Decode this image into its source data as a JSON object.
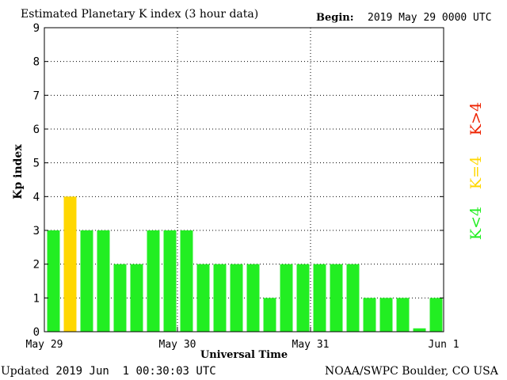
{
  "header": {
    "title": "Estimated Planetary K index (3 hour data)",
    "begin_label": "Begin:",
    "begin_value": "2019 May 29 0000 UTC"
  },
  "footer": {
    "updated_label": "Updated",
    "updated_value": "2019 Jun  1 00:30:03 UTC",
    "credit": "NOAA/SWPC Boulder, CO USA"
  },
  "legend": [
    {
      "label": "K<4",
      "color": "#22ee22"
    },
    {
      "label": "K=4",
      "color": "#ffd700"
    },
    {
      "label": "K>4",
      "color": "#ee2200"
    }
  ],
  "chart_data": {
    "type": "bar",
    "ylabel": "Kp index",
    "xlabel": "Universal Time",
    "ylim": [
      0,
      9
    ],
    "yticks": [
      "0",
      "1",
      "2",
      "3",
      "4",
      "5",
      "6",
      "7",
      "8",
      "9"
    ],
    "xtick_labels": [
      "May 29",
      "May 30",
      "May 31",
      "Jun 1"
    ],
    "grid": true,
    "colors": {
      "below": "#22ee22",
      "equal": "#ffd700",
      "above": "#ee2200"
    },
    "interval_hours": 3,
    "values": [
      3,
      4,
      3,
      3,
      2,
      2,
      3,
      3,
      3,
      2,
      2,
      2,
      2,
      1,
      2,
      2,
      2,
      2,
      2,
      1,
      1,
      1,
      0.1,
      1
    ]
  }
}
